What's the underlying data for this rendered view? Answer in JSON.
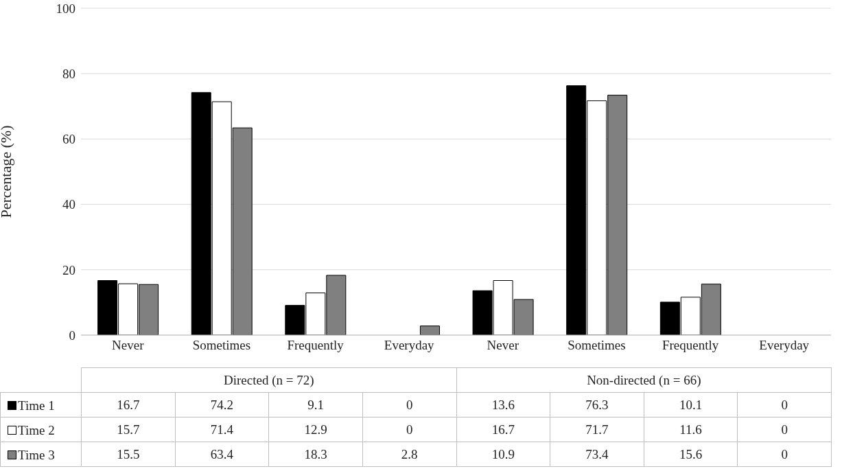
{
  "chart_data": {
    "type": "bar",
    "ylabel": "Percentage (%)",
    "categories": [
      "Never",
      "Sometimes",
      "Frequently",
      "Everyday",
      "Never",
      "Sometimes",
      "Frequently",
      "Everyday"
    ],
    "series": [
      {
        "name": "Time 1",
        "color": "#000000",
        "values": [
          16.7,
          74.2,
          9.1,
          0,
          13.6,
          76.3,
          10.1,
          0
        ]
      },
      {
        "name": "Time 2",
        "color": "#ffffff",
        "values": [
          15.7,
          71.4,
          12.9,
          0,
          16.7,
          71.7,
          11.6,
          0
        ]
      },
      {
        "name": "Time 3",
        "color": "#808080",
        "values": [
          15.5,
          63.4,
          18.3,
          2.8,
          10.9,
          73.4,
          15.6,
          0
        ]
      }
    ],
    "ylim": [
      0,
      100
    ],
    "yticks": [
      0,
      20,
      40,
      60,
      80,
      100
    ],
    "grid": "y",
    "legend": "bottom",
    "data_labels": true,
    "annotations": [
      "Directed (n = 72)",
      "Non-directed (n = 66)"
    ]
  }
}
